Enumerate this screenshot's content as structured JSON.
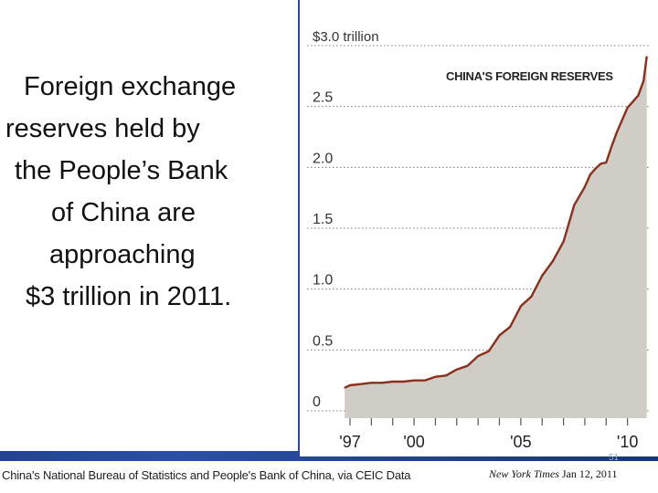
{
  "slide": {
    "caption_lines": [
      "Foreign exchange",
      "reserves held by",
      "the People’s Bank",
      "of China are",
      "approaching",
      "$3 trillion in 2011."
    ],
    "source_note": "China's National Bureau of Statistics and People's Bank of China, via CEIC Data",
    "citation_publication": "New York Times",
    "citation_date": "Jan 12, 2011",
    "page_number": "51"
  },
  "colors": {
    "line": "#8a2f1c",
    "area": "#cfcdc6",
    "slide_background": "#1f3a8a"
  },
  "chart_data": {
    "type": "area",
    "title": "CHINA'S FOREIGN RESERVES",
    "xlabel": "",
    "ylabel": "",
    "y_ticks": [
      {
        "value": 3.0,
        "label": "$3.0 trillion"
      },
      {
        "value": 2.5,
        "label": "2.5"
      },
      {
        "value": 2.0,
        "label": "2.0"
      },
      {
        "value": 1.5,
        "label": "1.5"
      },
      {
        "value": 1.0,
        "label": "1.0"
      },
      {
        "value": 0.5,
        "label": "0.5"
      },
      {
        "value": 0,
        "label": "0"
      }
    ],
    "x_ticks": [
      {
        "value": 1997,
        "label": "'97"
      },
      {
        "value": 2000,
        "label": "'00"
      },
      {
        "value": 2005,
        "label": "'05"
      },
      {
        "value": 2010,
        "label": "'10"
      }
    ],
    "xlim": [
      1996.7,
      2011.0
    ],
    "ylim": [
      0,
      3.0
    ],
    "grid": true,
    "series": [
      {
        "x": [
          1996.75,
          1997.0,
          1997.5,
          1998.0,
          1998.5,
          1999.0,
          1999.5,
          2000.0,
          2000.5,
          2001.0,
          2001.5,
          2002.0,
          2002.5,
          2003.0,
          2003.5,
          2004.0,
          2004.5,
          2005.0,
          2005.5,
          2006.0,
          2006.5,
          2007.0,
          2007.5,
          2008.0,
          2008.25,
          2008.5,
          2008.75,
          2009.0,
          2009.25,
          2009.5,
          2009.75,
          2010.0,
          2010.25,
          2010.5,
          2010.75,
          2010.9
        ],
        "values": [
          0.1,
          0.12,
          0.13,
          0.14,
          0.14,
          0.15,
          0.15,
          0.16,
          0.16,
          0.19,
          0.2,
          0.25,
          0.28,
          0.36,
          0.4,
          0.53,
          0.6,
          0.77,
          0.85,
          1.02,
          1.14,
          1.3,
          1.6,
          1.75,
          1.85,
          1.9,
          1.94,
          1.95,
          2.08,
          2.2,
          2.3,
          2.4,
          2.45,
          2.5,
          2.62,
          2.82
        ]
      }
    ]
  }
}
